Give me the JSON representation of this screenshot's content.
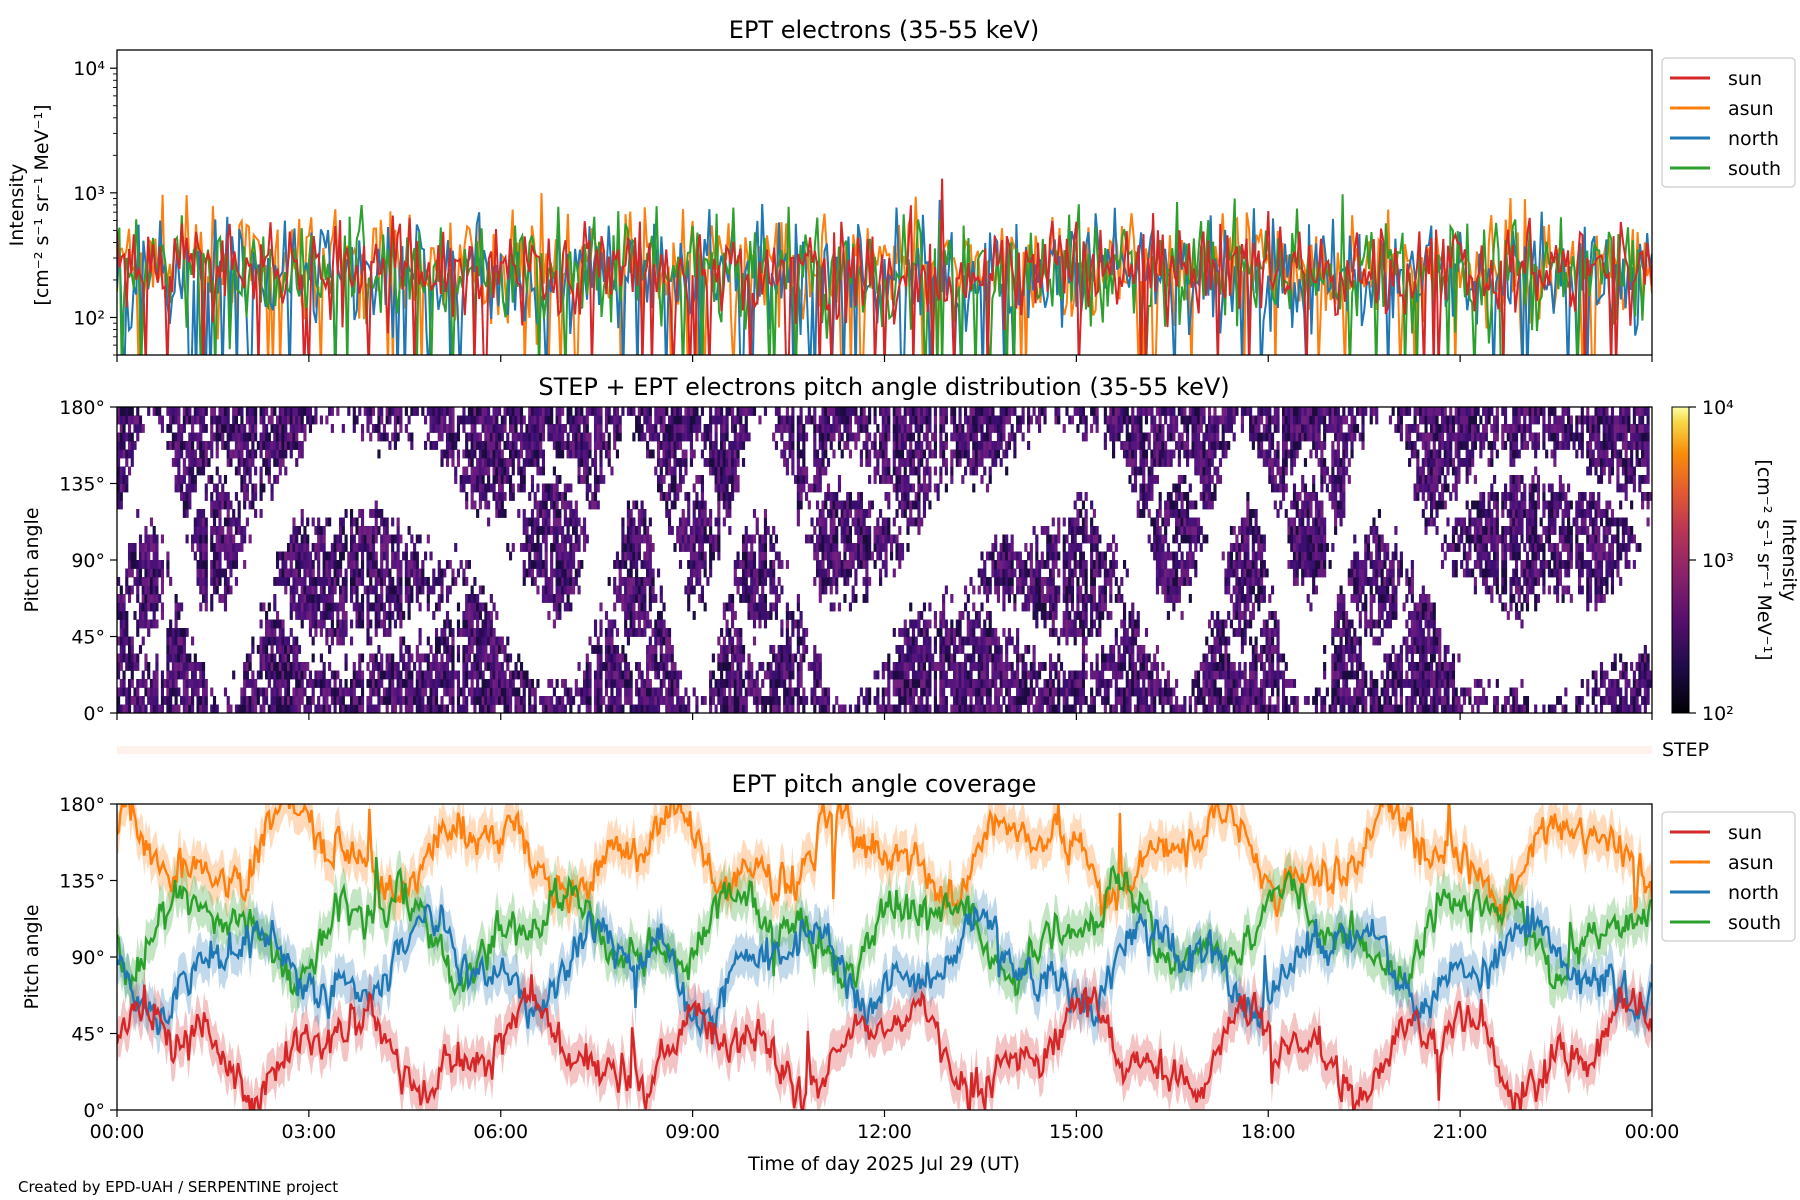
{
  "chart_data": [
    {
      "type": "line",
      "title": "EPT electrons (35-55 keV)",
      "ylabel": [
        "Intensity",
        "[cm⁻² s⁻¹ sr⁻¹ MeV⁻¹]"
      ],
      "yscale": "log",
      "ylim": [
        50,
        14000
      ],
      "yticks": [
        {
          "value": 100,
          "label": "10²"
        },
        {
          "value": 1000,
          "label": "10³"
        },
        {
          "value": 10000,
          "label": "10⁴"
        }
      ],
      "xlim_hours": [
        0,
        24
      ],
      "legend": "top-right outside",
      "series": [
        {
          "name": "sun",
          "color": "#d62728",
          "typical": 250,
          "spread": 0.28,
          "peak": {
            "hour": 12.9,
            "value": 1300
          }
        },
        {
          "name": "asun",
          "color": "#ff7f0e",
          "typical": 260,
          "spread": 0.3
        },
        {
          "name": "north",
          "color": "#1f77b4",
          "typical": 220,
          "spread": 0.33
        },
        {
          "name": "south",
          "color": "#2ca02c",
          "typical": 240,
          "spread": 0.33
        }
      ]
    },
    {
      "type": "heatmap",
      "title": "STEP + EPT electrons pitch angle distribution (35-55 keV)",
      "ylabel": "Pitch angle",
      "ylim": [
        0,
        180
      ],
      "yticks": [
        "0°",
        "45°",
        "90°",
        "135°",
        "180°"
      ],
      "xlim_hours": [
        0,
        24
      ],
      "colorbar": {
        "scale": "log",
        "range": [
          100,
          10000
        ],
        "ticks": [
          "10²",
          "10³",
          "10⁴"
        ],
        "label": "Intensity\n[cm⁻² s⁻¹ sr⁻¹ MeV⁻¹]",
        "colormap": "inferno",
        "typical_value": 250
      }
    },
    {
      "type": "heatmap",
      "label": "STEP",
      "values": "near-zero coverage band",
      "color": "#fff1ec"
    },
    {
      "type": "line",
      "title": "EPT pitch angle coverage",
      "ylabel": "Pitch angle",
      "ylim": [
        0,
        180
      ],
      "yticks": [
        "0°",
        "45°",
        "90°",
        "135°",
        "180°"
      ],
      "xlabel": "Time of day 2025 Jul 29 (UT)",
      "xticks": [
        "00:00",
        "03:00",
        "06:00",
        "09:00",
        "12:00",
        "15:00",
        "18:00",
        "21:00",
        "00:00"
      ],
      "legend": "top-right outside",
      "series": [
        {
          "name": "sun",
          "color": "#d62728",
          "mean_deg": 35,
          "band_deg": 12
        },
        {
          "name": "asun",
          "color": "#ff7f0e",
          "mean_deg": 150,
          "band_deg": 12
        },
        {
          "name": "north",
          "color": "#1f77b4",
          "mean_deg": 85,
          "band_deg": 12
        },
        {
          "name": "south",
          "color": "#2ca02c",
          "mean_deg": 105,
          "band_deg": 12
        }
      ]
    }
  ],
  "credit": "Created by EPD-UAH / SERPENTINE project"
}
